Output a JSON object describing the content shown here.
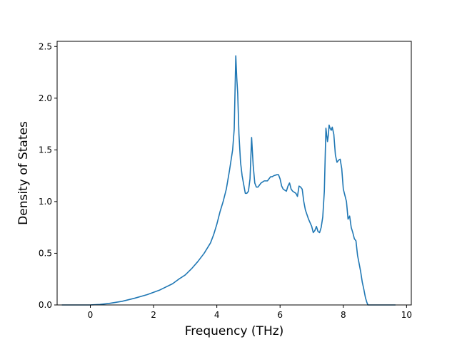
{
  "chart_data": {
    "type": "line",
    "title": "",
    "xlabel": "Frequency (THz)",
    "ylabel": "Density of States",
    "xlim": [
      -1.05,
      10.15
    ],
    "ylim": [
      0.0,
      2.55
    ],
    "xticks": [
      0,
      2,
      4,
      6,
      8,
      10
    ],
    "yticks": [
      0.0,
      0.5,
      1.0,
      1.5,
      2.0,
      2.5
    ],
    "xtick_labels": [
      "0",
      "2",
      "4",
      "6",
      "8",
      "10"
    ],
    "ytick_labels": [
      "0.0",
      "0.5",
      "1.0",
      "1.5",
      "2.0",
      "2.5"
    ],
    "grid": false,
    "legend": "none",
    "series": [
      {
        "color": "#1f77b4",
        "x": [
          -0.9,
          -0.5,
          0.0,
          0.3,
          0.6,
          1.0,
          1.4,
          1.8,
          2.2,
          2.6,
          2.8,
          3.0,
          3.2,
          3.4,
          3.6,
          3.8,
          3.9,
          4.0,
          4.1,
          4.2,
          4.3,
          4.4,
          4.5,
          4.55,
          4.6,
          4.63,
          4.66,
          4.7,
          4.75,
          4.8,
          4.9,
          4.95,
          5.0,
          5.05,
          5.1,
          5.15,
          5.2,
          5.25,
          5.3,
          5.4,
          5.5,
          5.6,
          5.7,
          5.75,
          5.8,
          5.9,
          5.95,
          6.0,
          6.05,
          6.1,
          6.2,
          6.25,
          6.3,
          6.35,
          6.4,
          6.5,
          6.55,
          6.6,
          6.65,
          6.7,
          6.75,
          6.8,
          6.9,
          7.0,
          7.05,
          7.1,
          7.15,
          7.2,
          7.25,
          7.3,
          7.35,
          7.4,
          7.45,
          7.5,
          7.53,
          7.55,
          7.58,
          7.62,
          7.65,
          7.7,
          7.75,
          7.8,
          7.85,
          7.9,
          7.95,
          8.0,
          8.1,
          8.15,
          8.2,
          8.25,
          8.3,
          8.35,
          8.4,
          8.45,
          8.5,
          8.55,
          8.6,
          8.65,
          8.7,
          8.75,
          8.78,
          8.8,
          9.0,
          9.5,
          9.65
        ],
        "y": [
          0.0,
          0.0,
          0.0,
          0.005,
          0.015,
          0.035,
          0.065,
          0.1,
          0.145,
          0.205,
          0.25,
          0.29,
          0.35,
          0.42,
          0.5,
          0.6,
          0.68,
          0.78,
          0.9,
          1.0,
          1.12,
          1.3,
          1.5,
          1.7,
          2.41,
          2.2,
          2.05,
          1.65,
          1.38,
          1.25,
          1.08,
          1.08,
          1.1,
          1.22,
          1.62,
          1.35,
          1.18,
          1.14,
          1.14,
          1.18,
          1.2,
          1.2,
          1.24,
          1.24,
          1.25,
          1.26,
          1.26,
          1.22,
          1.15,
          1.12,
          1.1,
          1.15,
          1.18,
          1.12,
          1.1,
          1.08,
          1.05,
          1.15,
          1.14,
          1.12,
          1.0,
          0.92,
          0.83,
          0.76,
          0.7,
          0.72,
          0.76,
          0.71,
          0.7,
          0.75,
          0.85,
          1.1,
          1.71,
          1.58,
          1.65,
          1.74,
          1.71,
          1.69,
          1.72,
          1.65,
          1.45,
          1.38,
          1.4,
          1.41,
          1.32,
          1.12,
          1.0,
          0.83,
          0.86,
          0.75,
          0.7,
          0.64,
          0.62,
          0.48,
          0.4,
          0.32,
          0.22,
          0.15,
          0.07,
          0.02,
          0.0,
          0.0,
          0.0,
          0.0,
          0.0
        ]
      }
    ]
  }
}
